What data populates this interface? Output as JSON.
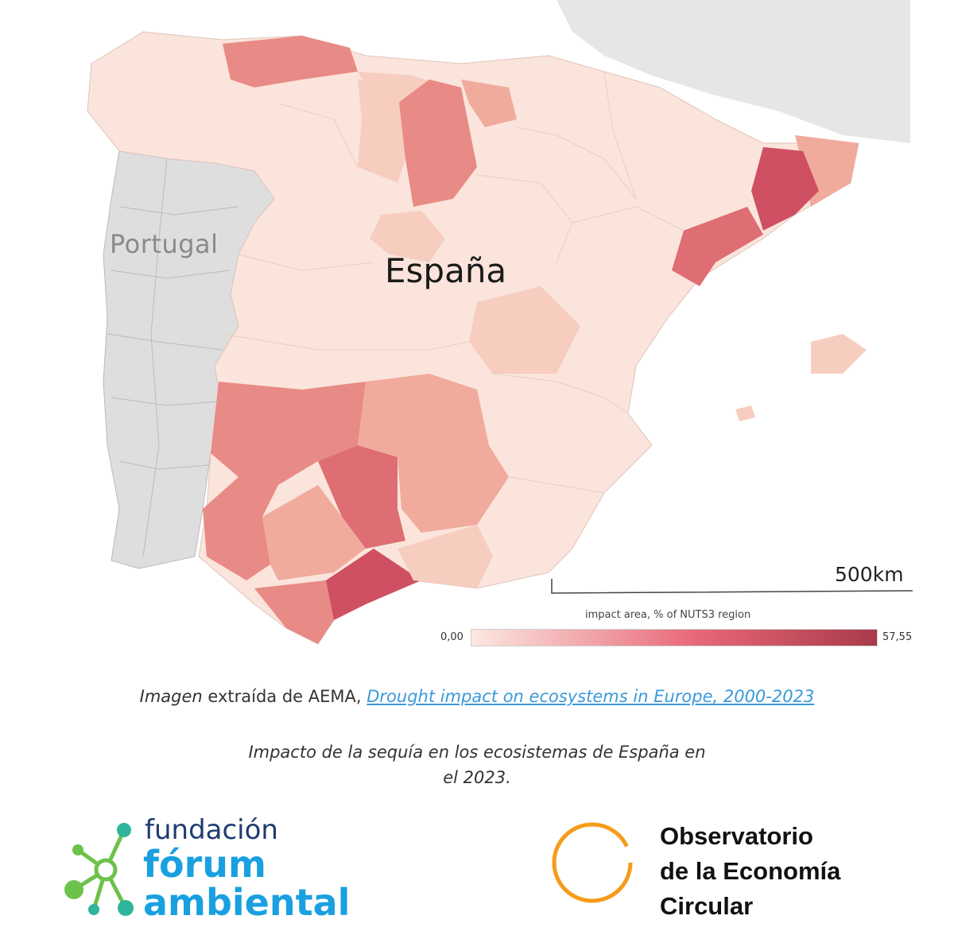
{
  "map": {
    "labels": {
      "portugal": "Portugal",
      "spain": "España"
    },
    "scale_bar": "500km",
    "legend": {
      "title": "impact area, % of NUTS3 region",
      "min": "0,00",
      "max": "57,55",
      "color_low": "#fbe8e0",
      "color_high": "#a93a4a"
    },
    "colors": {
      "land_bg": "#e3e3e3",
      "sea": "#ffffff",
      "portugal": "#dedede",
      "very_low": "#fbe4db",
      "low": "#f6cdbf",
      "medium": "#f0ab9d",
      "medium_high": "#e88a85",
      "high": "#de6d74",
      "very_high": "#cf4f63"
    }
  },
  "caption": {
    "line1_italic": "Imagen",
    "line1_text": " extraída de AEMA, ",
    "line1_link": "Drought impact on ecosystems in Europe, 2000-2023",
    "line2": "Impacto de la sequía en los ecosistemas de España en",
    "line3": "el 2023."
  },
  "logos": {
    "fundacion": {
      "word1": "fundación",
      "word2": "fórum",
      "word3": "ambiental"
    },
    "observatorio": {
      "line1": "Observatorio",
      "line2": "de la Economía",
      "line3": "Circular"
    }
  }
}
